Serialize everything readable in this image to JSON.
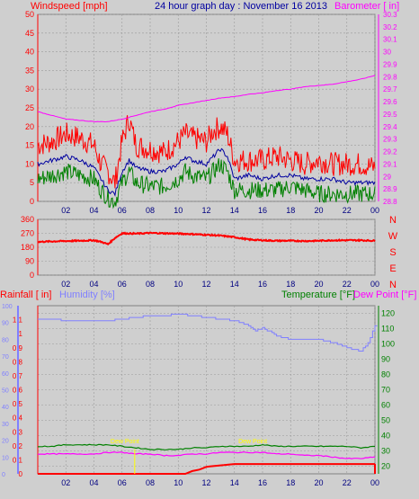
{
  "header": {
    "left": "Windspeed [mph]",
    "center": "24 hour graph day : November 16 2013",
    "right": "Barometer [ in]"
  },
  "colors": {
    "background": "#cfcfcf",
    "plot_bg": "#cfcfcf",
    "grid": "#9a9a9a",
    "windspeed": "#ff0000",
    "average": "#0000a0",
    "gust_low": "#008000",
    "barometer": "#ff00ff",
    "direction": "#ff0000",
    "humidity": "#8080ff",
    "temperature": "#008000",
    "dewpoint": "#ff00ff",
    "rainfall": "#ff0000",
    "blue_text": "#0000a0",
    "day_marker": "#ffff00"
  },
  "chart_data": [
    {
      "type": "line",
      "title": "24 hour graph day : November 16 2013",
      "xticks": [
        "02",
        "04",
        "06",
        "08",
        "10",
        "12",
        "14",
        "16",
        "18",
        "20",
        "22",
        "00"
      ],
      "left_axis": {
        "label": "Windspeed [mph]",
        "ylim": [
          0,
          50
        ],
        "ticks": [
          0,
          5,
          10,
          15,
          20,
          25,
          30,
          35,
          40,
          45,
          50
        ]
      },
      "right_axis": {
        "label": "Barometer [ in]",
        "ylim": [
          28.8,
          30.3
        ],
        "ticks": [
          "28.8",
          "28.9",
          "29",
          "29.1",
          "29.2",
          "29.3",
          "29.4",
          "29.5",
          "29.6",
          "29.7",
          "29.8",
          "29.9",
          "30",
          "30.1",
          "30.2",
          "30.3"
        ]
      },
      "series": [
        {
          "name": "Gust",
          "color": "#ff0000",
          "x": [
            0,
            1,
            2,
            3,
            4,
            4.5,
            5,
            5.5,
            6,
            6.5,
            7,
            8,
            9,
            10,
            10.5,
            11,
            12,
            12.5,
            13,
            13.5,
            14,
            15,
            16,
            17,
            18,
            19,
            20,
            21,
            22,
            23,
            24
          ],
          "y": [
            15,
            16,
            18,
            17,
            15,
            10,
            8,
            5,
            16,
            22,
            15,
            14,
            13,
            16,
            18,
            17,
            16,
            19,
            20,
            18,
            11,
            11,
            11,
            12,
            11,
            10,
            11,
            10,
            10,
            10,
            9
          ]
        },
        {
          "name": "Average",
          "color": "#0000a0",
          "x": [
            0,
            1,
            2,
            3,
            4,
            4.5,
            5,
            5.5,
            6,
            6.5,
            7,
            8,
            9,
            10,
            10.5,
            11,
            12,
            12.5,
            13,
            13.5,
            14,
            15,
            16,
            17,
            18,
            19,
            20,
            21,
            22,
            23,
            24
          ],
          "y": [
            10,
            11,
            12,
            11,
            9,
            6,
            3,
            2,
            8,
            11,
            9,
            8,
            8,
            10,
            12,
            11,
            10,
            12,
            14,
            12,
            6,
            7,
            6,
            7,
            7,
            6,
            6,
            6,
            5,
            5,
            5
          ]
        },
        {
          "name": "Low",
          "color": "#008000",
          "x": [
            0,
            1,
            2,
            3,
            4,
            4.5,
            5,
            5.5,
            6,
            6.5,
            7,
            8,
            9,
            10,
            10.5,
            11,
            12,
            12.5,
            13,
            13.5,
            14,
            15,
            16,
            17,
            18,
            19,
            20,
            21,
            22,
            23,
            24
          ],
          "y": [
            6,
            7,
            8,
            7,
            6,
            3,
            1,
            0,
            5,
            8,
            5,
            4,
            4,
            6,
            8,
            7,
            6,
            8,
            10,
            8,
            3,
            3,
            3,
            3,
            4,
            3,
            2,
            2,
            2,
            2,
            2
          ]
        },
        {
          "name": "Barometer",
          "color": "#ff00ff",
          "axis": "right",
          "x": [
            0,
            1,
            2,
            3,
            4,
            5,
            6,
            7,
            8,
            9,
            10,
            11,
            12,
            13,
            14,
            15,
            16,
            17,
            18,
            19,
            20,
            21,
            22,
            23,
            24
          ],
          "y": [
            29.52,
            29.49,
            29.46,
            29.45,
            29.44,
            29.44,
            29.46,
            29.49,
            29.52,
            29.54,
            29.57,
            29.59,
            29.61,
            29.63,
            29.64,
            29.66,
            29.67,
            29.69,
            29.7,
            29.72,
            29.73,
            29.74,
            29.76,
            29.78,
            29.81
          ]
        }
      ]
    },
    {
      "type": "line",
      "xticks": [
        "02",
        "04",
        "06",
        "08",
        "10",
        "12",
        "14",
        "16",
        "18",
        "20",
        "22",
        "00"
      ],
      "left_axis": {
        "ylim": [
          0,
          360
        ],
        "ticks": [
          0,
          90,
          180,
          270,
          360
        ]
      },
      "right_labels": [
        "N",
        "W",
        "S",
        "E",
        "N"
      ],
      "series": [
        {
          "name": "Direction",
          "color": "#ff0000",
          "x": [
            0,
            1,
            2,
            3,
            4,
            4.5,
            5,
            5.5,
            6,
            7,
            8,
            9,
            10,
            11,
            12,
            13,
            14,
            15,
            16,
            17,
            18,
            19,
            20,
            21,
            22,
            23,
            24
          ],
          "y": [
            215,
            218,
            220,
            222,
            225,
            215,
            200,
            240,
            270,
            268,
            272,
            270,
            268,
            265,
            260,
            255,
            245,
            230,
            225,
            222,
            222,
            220,
            222,
            225,
            225,
            225,
            222
          ]
        }
      ]
    },
    {
      "type": "line",
      "xticks": [
        "02",
        "04",
        "06",
        "08",
        "10",
        "12",
        "14",
        "16",
        "18",
        "20",
        "22",
        "00"
      ],
      "left_axis": {
        "label": "Rainfall [ in]",
        "ylim": [
          0,
          1.2
        ],
        "ticks": [
          "0",
          "0.1",
          "0.2",
          "0.3",
          "0.4",
          "0.5",
          "0.6",
          "0.7",
          "0.8",
          "0.9",
          "1",
          "1.1"
        ]
      },
      "humidity_axis": {
        "label": "Humidity [%]",
        "ylim": [
          0,
          100
        ],
        "ticks": [
          0,
          10,
          20,
          30,
          40,
          50,
          60,
          70,
          80,
          90,
          100
        ]
      },
      "right_axis": {
        "label": "Temperature [°F]",
        "label2": "Dew Point [°F]",
        "ylim": [
          15,
          125
        ],
        "ticks": [
          20,
          30,
          40,
          50,
          60,
          70,
          80,
          90,
          100,
          110,
          120
        ]
      },
      "annotations": [
        "Dew Point",
        "Dew Point"
      ],
      "series": [
        {
          "name": "Humidity",
          "color": "#8080ff",
          "axis": "humidity",
          "x": [
            0,
            1,
            2,
            3,
            4,
            5,
            6,
            7,
            8,
            9,
            10,
            11,
            12,
            13,
            14,
            15,
            15.5,
            16,
            17,
            18,
            19,
            20,
            21,
            22,
            23,
            23.5,
            24
          ],
          "y": [
            92,
            92,
            91,
            91,
            91,
            91,
            92,
            93,
            94,
            94,
            95,
            94,
            93,
            92,
            91,
            88,
            85,
            87,
            82,
            80,
            80,
            80,
            78,
            75,
            73,
            78,
            88
          ]
        },
        {
          "name": "Temperature",
          "color": "#008000",
          "axis": "right",
          "x": [
            0,
            1,
            2,
            3,
            4,
            5,
            6,
            7,
            8,
            9,
            10,
            11,
            12,
            13,
            14,
            15,
            16,
            17,
            18,
            19,
            20,
            21,
            22,
            23,
            24
          ],
          "y": [
            33,
            33,
            34,
            34,
            34,
            34,
            33,
            32,
            31,
            31,
            31,
            32,
            32,
            33,
            33,
            33,
            34,
            33,
            33,
            33,
            33,
            33,
            33,
            32,
            33
          ]
        },
        {
          "name": "Dew Point",
          "color": "#ff00ff",
          "axis": "right",
          "x": [
            0,
            1,
            2,
            3,
            4,
            5,
            6,
            7,
            8,
            9,
            10,
            11,
            12,
            13,
            14,
            15,
            16,
            17,
            18,
            19,
            20,
            21,
            22,
            23,
            24
          ],
          "y": [
            28,
            28,
            28,
            28,
            28,
            29,
            29,
            28,
            28,
            27,
            27,
            28,
            28,
            29,
            29,
            29,
            29,
            28,
            28,
            27,
            27,
            26,
            25,
            25,
            26
          ]
        },
        {
          "name": "Rainfall",
          "color": "#ff0000",
          "x": [
            0,
            10.5,
            11,
            11.5,
            12,
            13,
            14,
            15,
            16,
            17,
            18,
            19,
            20,
            21,
            22,
            23,
            24
          ],
          "y": [
            0,
            0,
            0.02,
            0.03,
            0.05,
            0.06,
            0.07,
            0.07,
            0.07,
            0.07,
            0.07,
            0.07,
            0.07,
            0.07,
            0.07,
            0.07,
            0.07
          ]
        }
      ]
    }
  ]
}
